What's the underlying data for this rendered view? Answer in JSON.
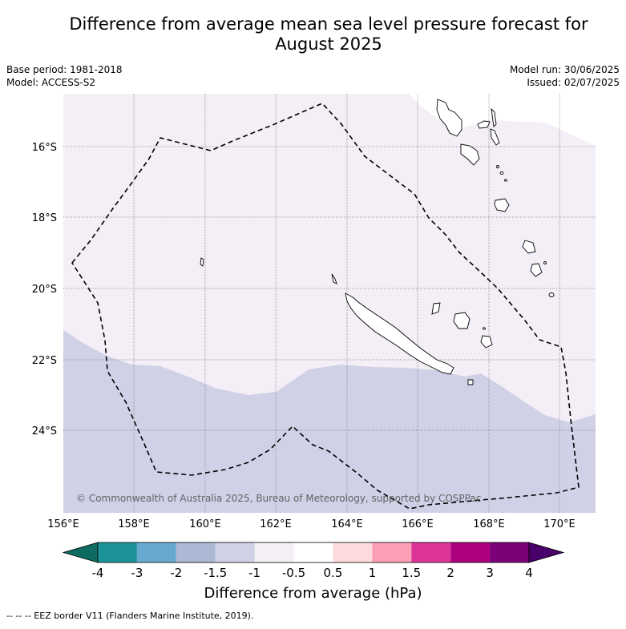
{
  "title_line1": "Difference from average mean sea level pressure forecast for",
  "title_line2": "August 2025",
  "meta": {
    "base_period": "Base period: 1981-2018",
    "model": "Model: ACCESS-S2",
    "model_run": "Model run: 30/06/2025",
    "issued": "Issued: 02/07/2025"
  },
  "map": {
    "lat_labels": [
      "16°S",
      "18°S",
      "20°S",
      "22°S",
      "24°S"
    ],
    "lon_labels": [
      "156°E",
      "158°E",
      "160°E",
      "162°E",
      "164°E",
      "166°E",
      "168°E",
      "170°E"
    ],
    "copyright": "© Commonwealth of Australia 2025, Bureau of Meteorology, supported by COSPPac",
    "colors": {
      "lower_band": "#d0d1e6",
      "upper_band": "#f4eef6",
      "eez": "#000000"
    }
  },
  "colorbar": {
    "title": "Difference from average (hPa)",
    "ticks": [
      "-4",
      "-3",
      "-2",
      "-1.5",
      "-1",
      "-0.5",
      "0.5",
      "1",
      "1.5",
      "2",
      "3",
      "4"
    ],
    "colors": [
      "#0e6b61",
      "#1b9398",
      "#67a9cf",
      "#adb8d5",
      "#d0d1e6",
      "#f4eef6",
      "#ffffff",
      "#fddbdc",
      "#fa9fb5",
      "#dd3497",
      "#ae017e",
      "#7a0177",
      "#49006a"
    ]
  },
  "footnote": "-- -- -- EEZ border V11 (Flanders Marine Institute, 2019)."
}
